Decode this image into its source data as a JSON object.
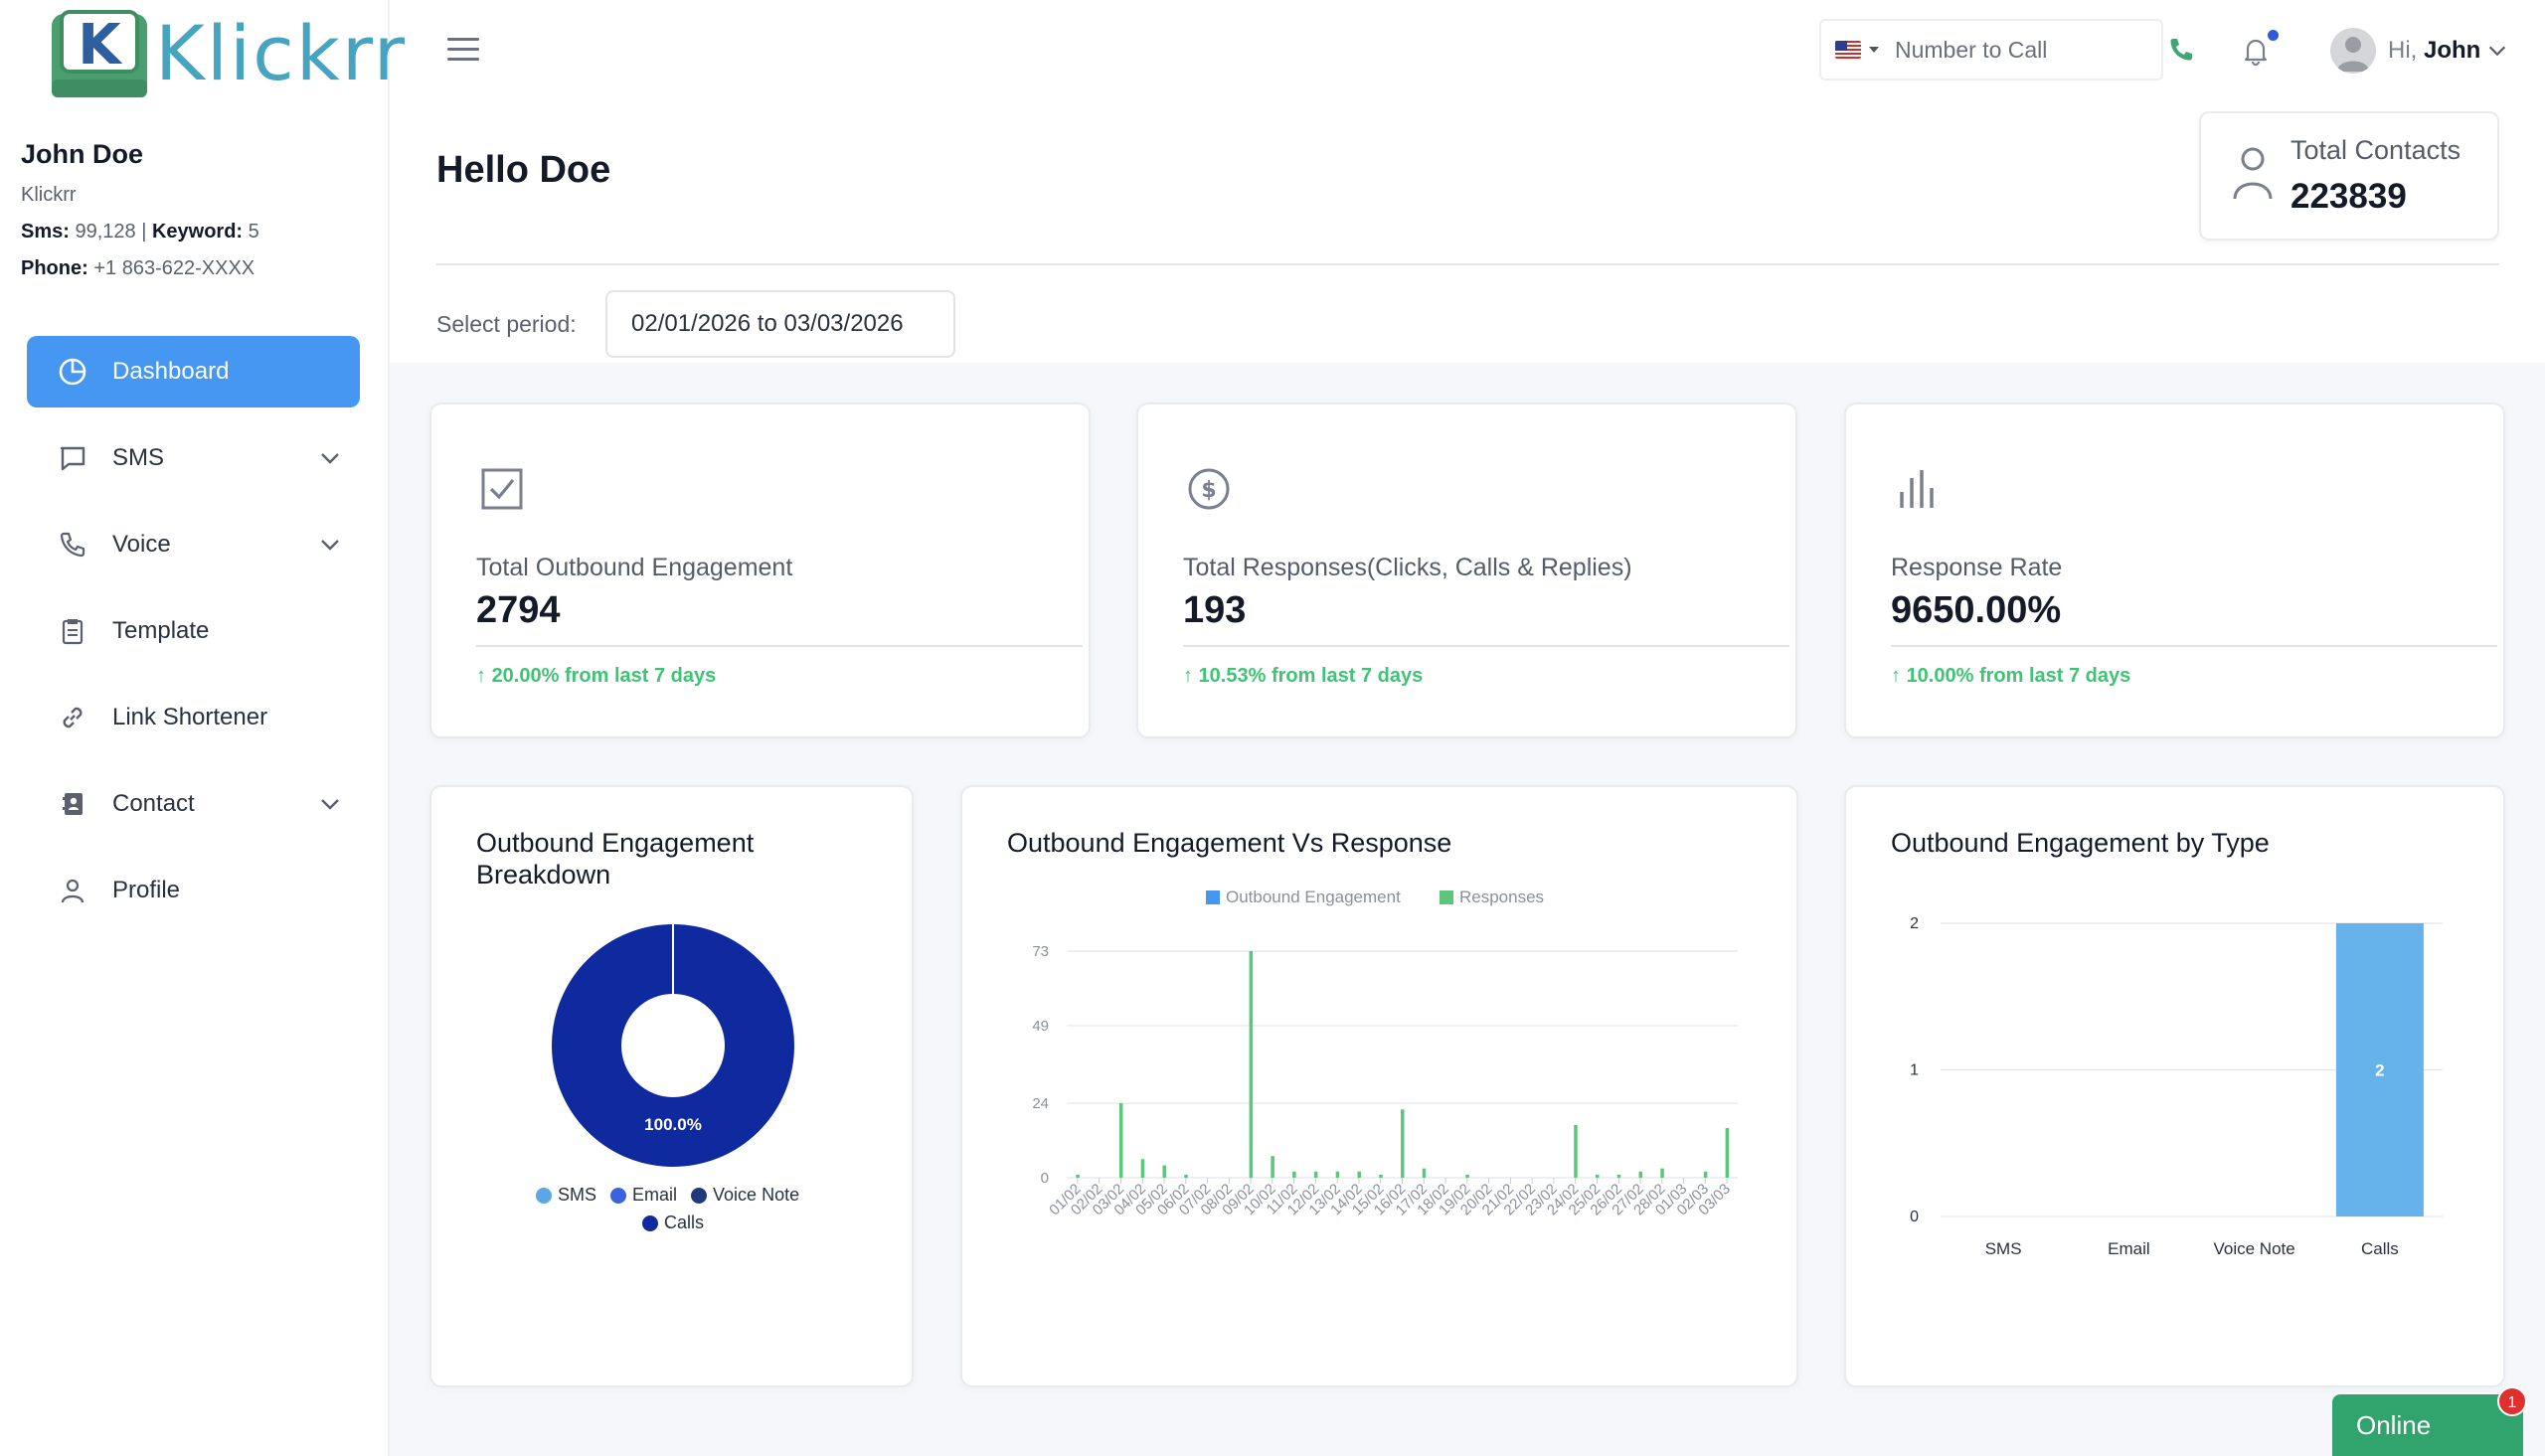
{
  "brand": {
    "name": "Klickrr"
  },
  "user": {
    "name": "John Doe",
    "org": "Klickrr",
    "sms_label": "Sms:",
    "sms_value": "99,128",
    "keyword_label": "Keyword:",
    "keyword_value": "5",
    "phone_label": "Phone:",
    "phone_value": "+1 863-622-XXXX"
  },
  "sidebar": {
    "items": [
      {
        "label": "Dashboard",
        "icon": "pie-chart-icon",
        "active": true
      },
      {
        "label": "SMS",
        "icon": "message-icon",
        "has_children": true
      },
      {
        "label": "Voice",
        "icon": "phone-icon",
        "has_children": true
      },
      {
        "label": "Template",
        "icon": "clipboard-icon"
      },
      {
        "label": "Link Shortener",
        "icon": "link-icon"
      },
      {
        "label": "Contact",
        "icon": "contact-book-icon",
        "has_children": true
      },
      {
        "label": "Profile",
        "icon": "user-icon"
      }
    ]
  },
  "topbar": {
    "call_placeholder": "Number to Call",
    "country_flag": "us-flag-icon",
    "greeting_prefix": "Hi,",
    "greeting_name": "John"
  },
  "header": {
    "hello": "Hello Doe",
    "total_contacts_label": "Total Contacts",
    "total_contacts_value": "223839"
  },
  "period": {
    "label": "Select period:",
    "value": "02/01/2026 to 03/03/2026"
  },
  "stats": [
    {
      "icon": "checkbox-icon",
      "label": "Total Outbound Engagement",
      "value": "2794",
      "trend": "20.00% from last 7 days"
    },
    {
      "icon": "dollar-circle-icon",
      "label": "Total Responses(Clicks, Calls & Replies)",
      "value": "193",
      "trend": "10.53% from last 7 days"
    },
    {
      "icon": "bar-chart-icon",
      "label": "Response Rate",
      "value": "9650.00%",
      "trend": "10.00% from last 7 days"
    }
  ],
  "colors": {
    "accent": "#4597f2",
    "trend_up": "#3ec474",
    "donut_dark": "#0f2a9e",
    "sms": "#5aa7e8",
    "email": "#3b63e0",
    "voice_note": "#1f3a7a",
    "calls": "#0f2a9e",
    "responses": "#5cc77a",
    "bar": "#65b3ea",
    "online": "#30a46c"
  },
  "chart_data": [
    {
      "type": "pie",
      "title": "Outbound Engagement Breakdown",
      "title_lines": [
        "Outbound Engagement",
        "Breakdown"
      ],
      "categories": [
        "SMS",
        "Email",
        "Voice Note",
        "Calls"
      ],
      "values": [
        0,
        0,
        0,
        100
      ],
      "data_label": "100.0%",
      "legend": "bottom"
    },
    {
      "type": "bar",
      "title": "Outbound Engagement Vs Response",
      "legend": "top",
      "yticks": [
        0,
        24,
        49,
        73
      ],
      "ylim": [
        0,
        73
      ],
      "categories": [
        "01/02",
        "02/02",
        "03/02",
        "04/02",
        "05/02",
        "06/02",
        "07/02",
        "08/02",
        "09/02",
        "10/02",
        "11/02",
        "12/02",
        "13/02",
        "14/02",
        "15/02",
        "16/02",
        "17/02",
        "18/02",
        "19/02",
        "20/02",
        "21/02",
        "22/02",
        "23/02",
        "24/02",
        "25/02",
        "26/02",
        "27/02",
        "28/02",
        "01/03",
        "02/03",
        "03/03"
      ],
      "series": [
        {
          "name": "Outbound Engagement",
          "values": [
            0,
            0,
            0,
            0,
            0,
            0,
            0,
            0,
            0,
            0,
            0,
            0,
            0,
            0,
            0,
            0,
            0,
            0,
            0,
            0,
            0,
            0,
            0,
            0,
            0,
            0,
            0,
            0,
            0,
            0,
            0
          ]
        },
        {
          "name": "Responses",
          "values": [
            1,
            0,
            24,
            6,
            4,
            1,
            0,
            0,
            73,
            7,
            2,
            2,
            2,
            2,
            1,
            22,
            3,
            0,
            1,
            0,
            0,
            0,
            0,
            17,
            1,
            1,
            2,
            3,
            0,
            2,
            16
          ]
        }
      ]
    },
    {
      "type": "bar",
      "title": "Outbound Engagement by Type",
      "categories": [
        "SMS",
        "Email",
        "Voice Note",
        "Calls"
      ],
      "values": [
        0,
        0,
        0,
        2
      ],
      "data_labels": [
        "",
        "",
        "",
        "2"
      ],
      "yticks": [
        0,
        1,
        2
      ],
      "ylim": [
        0,
        2
      ]
    }
  ],
  "chat": {
    "label": "Online",
    "badge": "1"
  }
}
